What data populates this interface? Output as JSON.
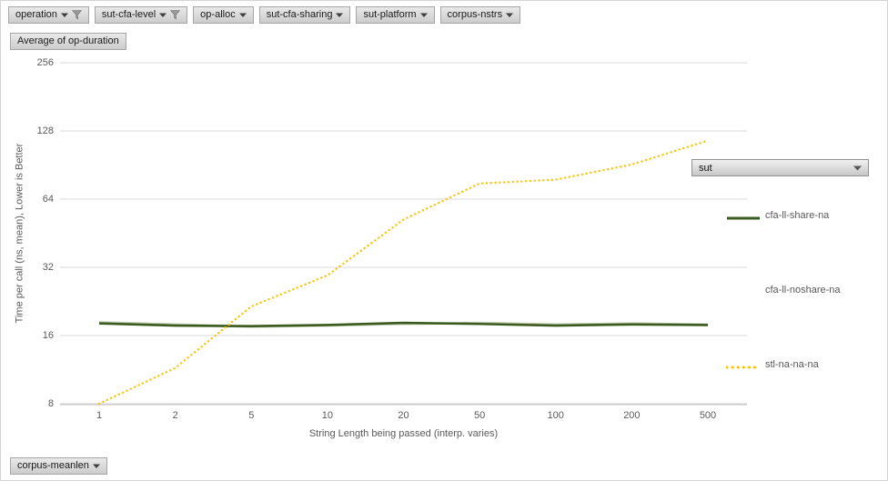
{
  "colors": {
    "share_green": "#3B5A1D",
    "noshare_pale": "#C2CDB3",
    "stl_yellow": "#FFC000",
    "gridline": "#D9D9D9",
    "axis_line": "#BFBFBF",
    "label_gray": "#595959"
  },
  "filters": [
    {
      "label": "operation",
      "filtered": true
    },
    {
      "label": "sut-cfa-level",
      "filtered": true
    },
    {
      "label": "op-alloc",
      "filtered": false
    },
    {
      "label": "sut-cfa-sharing",
      "filtered": false
    },
    {
      "label": "sut-platform",
      "filtered": false
    },
    {
      "label": "corpus-nstrs",
      "filtered": false
    }
  ],
  "value_field": {
    "label": "Average of op-duration"
  },
  "axis_field": {
    "label": "corpus-meanlen"
  },
  "legend_field": {
    "label": "sut"
  },
  "legend": [
    {
      "label": "cfa-ll-share-na",
      "swatch": "solid"
    },
    {
      "label": "cfa-ll-noshare-na",
      "swatch": "none"
    },
    {
      "label": "stl-na-na-na",
      "swatch": "dotted"
    }
  ],
  "chart_data": {
    "type": "line",
    "title": "",
    "xlabel": "String Length being passed (interp. varies)",
    "ylabel": "Time per call (ns, mean), Lower is Better",
    "x_categories": [
      "1",
      "2",
      "5",
      "10",
      "20",
      "50",
      "100",
      "200",
      "500"
    ],
    "y_ticks": [
      256,
      128,
      64,
      32,
      16,
      8
    ],
    "ylim": [
      8,
      256
    ],
    "y_scale": "log2",
    "grid": "horizontal",
    "legend_position": "right",
    "series": [
      {
        "name": "cfa-ll-noshare-na",
        "style": "solid",
        "color_key": "noshare_pale",
        "values": [
          18.3,
          17.9,
          17.5,
          17.7,
          18.0,
          18.2,
          17.9,
          18.1,
          17.9
        ]
      },
      {
        "name": "cfa-ll-share-na",
        "style": "solid",
        "color_key": "share_green",
        "values": [
          18.1,
          17.7,
          17.6,
          17.8,
          18.2,
          18.0,
          17.7,
          17.9,
          17.8
        ]
      },
      {
        "name": "stl-na-na-na",
        "style": "dotted",
        "color_key": "stl_yellow",
        "values": [
          8.0,
          11.5,
          21.5,
          29.5,
          52,
          75,
          78,
          91,
          116
        ]
      }
    ]
  }
}
